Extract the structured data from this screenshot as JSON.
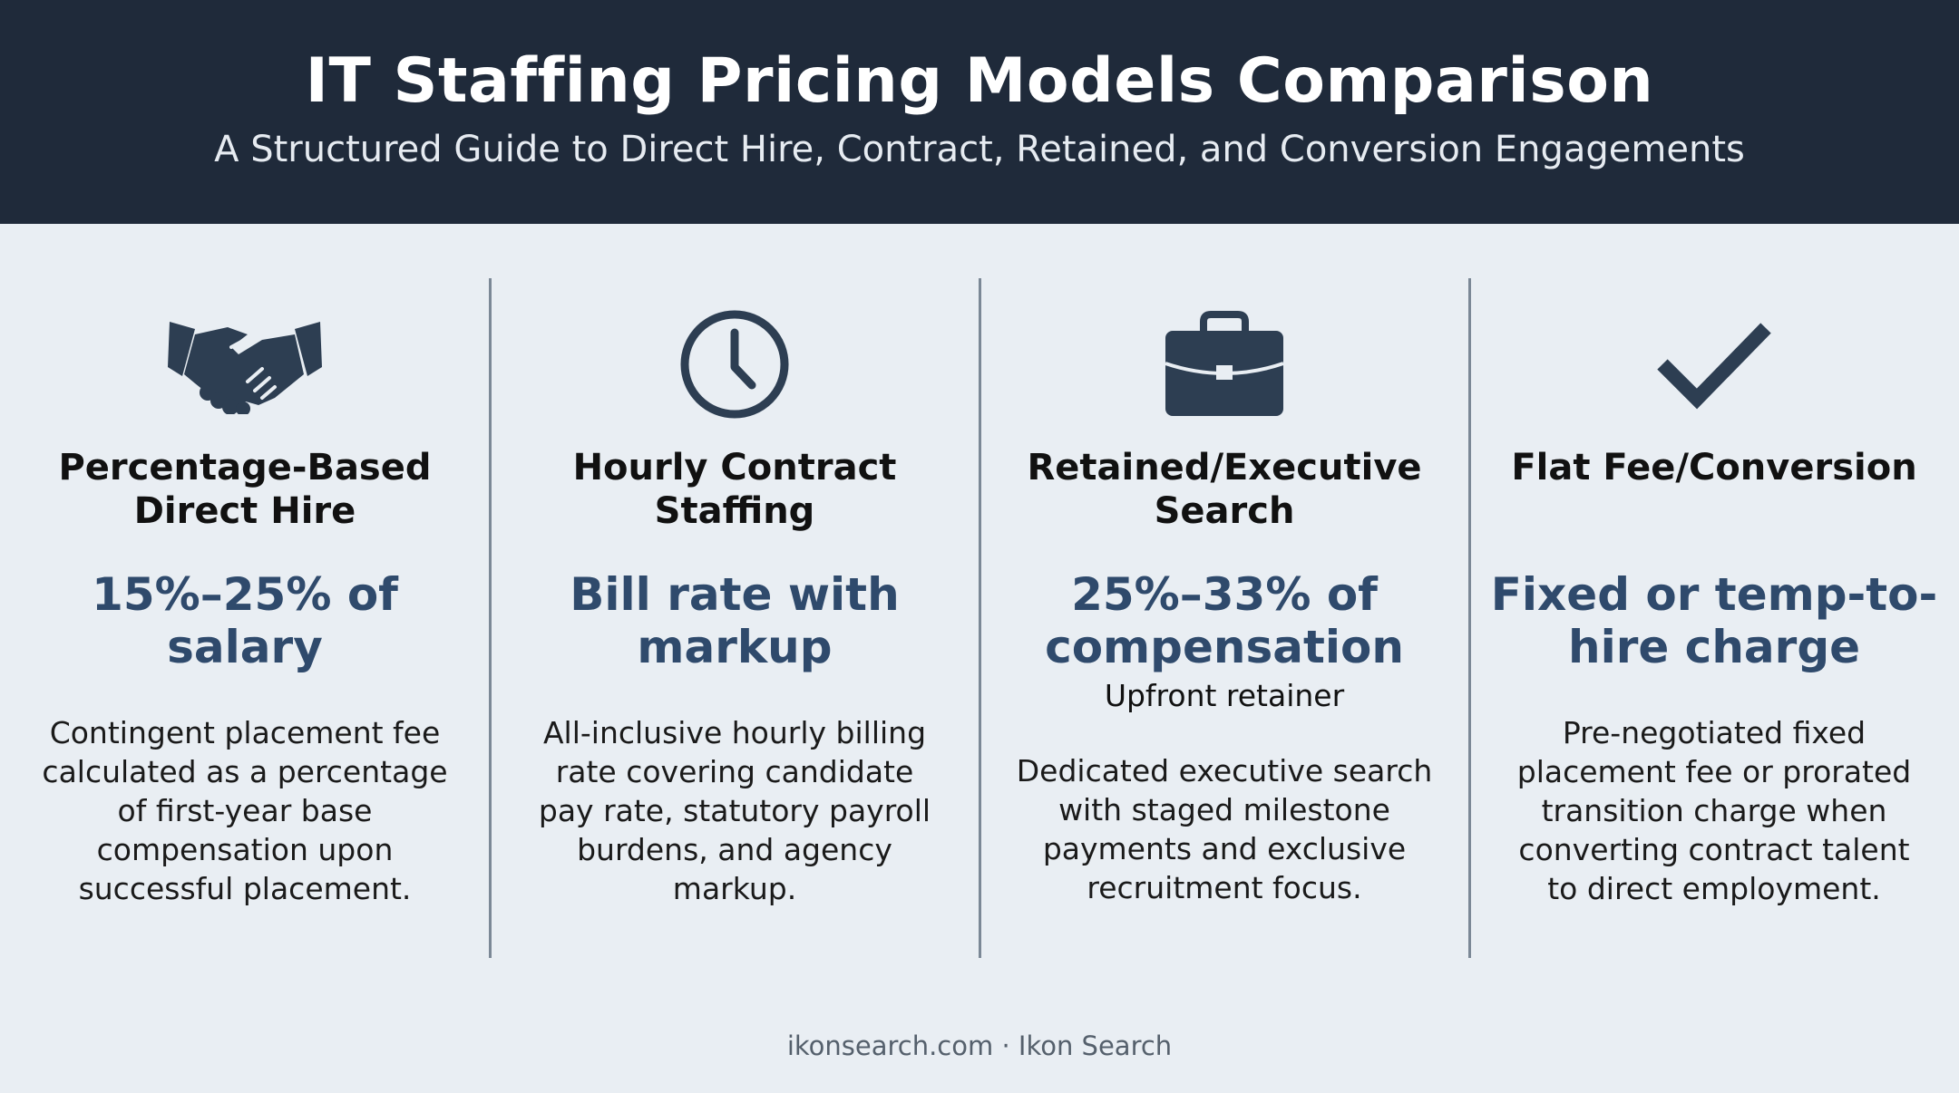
{
  "header": {
    "title": "IT Staffing Pricing Models Comparison",
    "subtitle": "A Structured Guide to Direct Hire, Contract, Retained, and Conversion Engagements"
  },
  "colors": {
    "header_bg": "#1f2a3a",
    "page_bg": "#e9eef3",
    "accent": "#2f4a6c",
    "icon": "#2d3e52"
  },
  "columns": [
    {
      "icon": "handshake-icon",
      "title": "Percentage-Based\nDirect Hire",
      "price": "15%–25% of\nsalary",
      "description": "Contingent placement fee\ncalculated as a percentage\nof first-year base\ncompensation upon\nsuccessful placement."
    },
    {
      "icon": "clock-icon",
      "title": "Hourly Contract\nStaffing",
      "price": "Bill rate with\nmarkup",
      "description": "All-inclusive hourly billing\nrate covering candidate\npay rate, statutory payroll\nburdens, and agency\nmarkup."
    },
    {
      "icon": "briefcase-icon",
      "title": "Retained/Executive\nSearch",
      "price": "25%–33% of\ncompensation",
      "note": "Upfront retainer",
      "description": "Dedicated executive search\nwith staged milestone\npayments and exclusive\nrecruitment focus."
    },
    {
      "icon": "checkmark-icon",
      "title": "Flat Fee/Conversion",
      "price": "Fixed or temp-to-\nhire charge",
      "description": "Pre-negotiated fixed\nplacement fee or prorated\ntransition charge when\nconverting contract talent\nto direct employment."
    }
  ],
  "footer": {
    "text": "ikonsearch.com · Ikon Search"
  }
}
